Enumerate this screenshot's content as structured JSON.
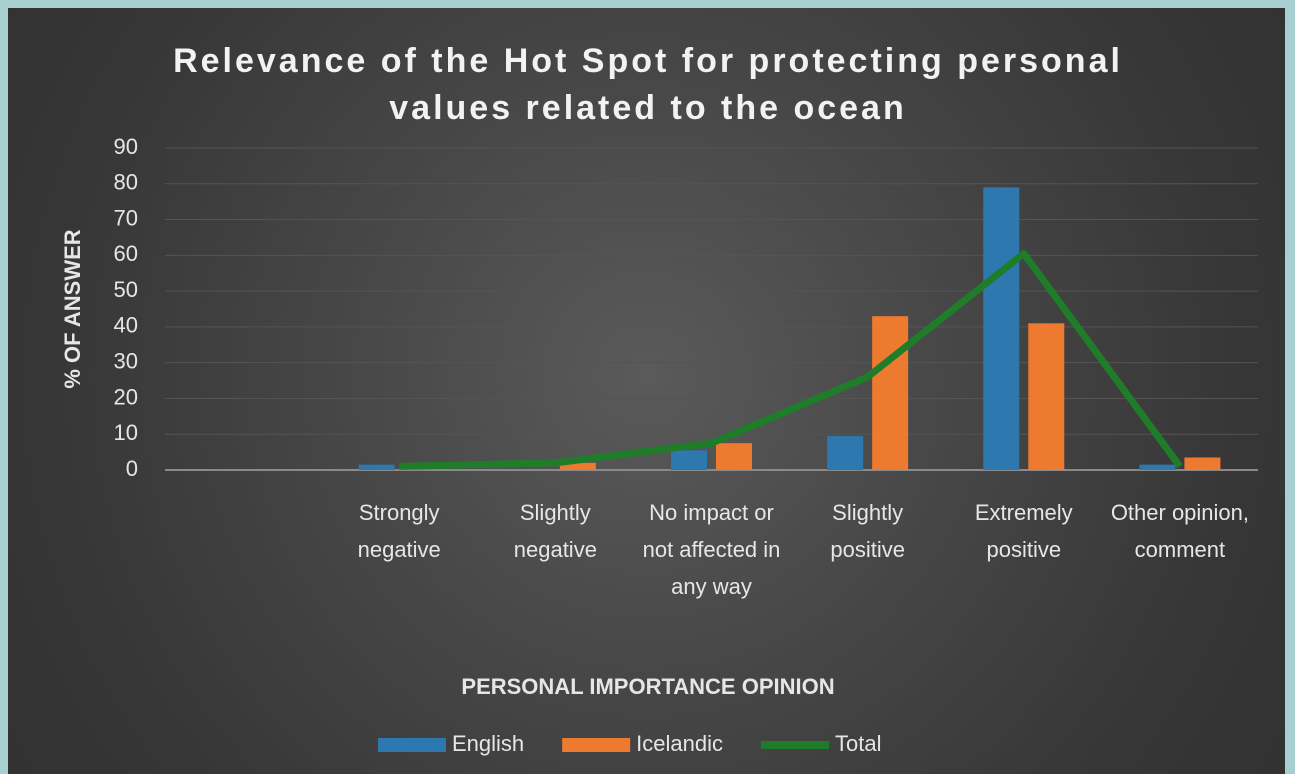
{
  "chart_data": {
    "type": "bar",
    "title": "Relevance of the Hot Spot for protecting personal values related to the ocean",
    "x_label": "PERSONAL IMPORTANCE OPINION",
    "y_label": "% OF ANSWER",
    "categories": [
      null,
      "Strongly negative",
      "Slightly negative",
      "No impact or not affected in any way",
      "Slightly positive",
      "Extremely positive",
      "Other opinion, comment"
    ],
    "series": [
      {
        "name": "English",
        "type": "bar",
        "color": "#2e78b0",
        "values": [
          null,
          1.5,
          0,
          5.5,
          9.5,
          79,
          1.5
        ]
      },
      {
        "name": "Icelandic",
        "type": "bar",
        "color": "#ee7a30",
        "values": [
          null,
          0,
          2,
          7.5,
          43,
          41,
          3.5
        ]
      },
      {
        "name": "Total",
        "type": "line",
        "color": "#1f7d2a",
        "values": [
          null,
          1,
          2,
          7.5,
          26,
          60.5,
          1
        ]
      }
    ],
    "ylim": [
      0,
      90
    ],
    "yticks": [
      0,
      10,
      20,
      30,
      40,
      50,
      60,
      70,
      80,
      90
    ],
    "grid": true,
    "legend": "bottom"
  }
}
